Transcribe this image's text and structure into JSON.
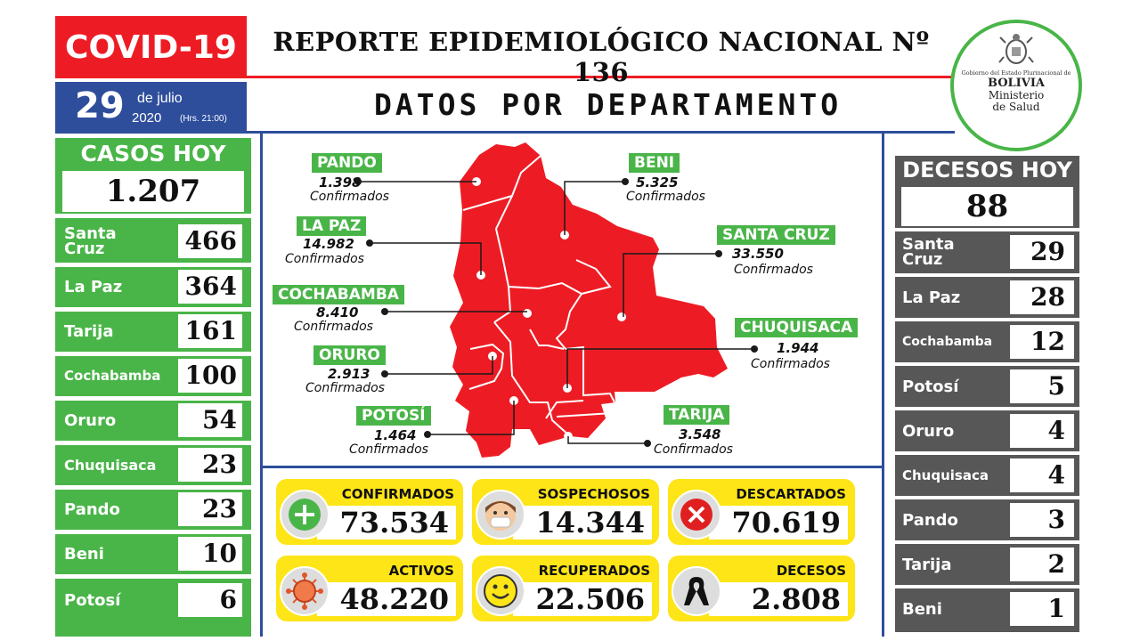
{
  "header": {
    "covid": "COVID-19",
    "report_title": "REPORTE EPIDEMIOLÓGICO NACIONAL Nº 136",
    "day": "29",
    "month": "de julio",
    "year": "2020",
    "hours": "(Hrs. 21:00)",
    "dept_title": "DATOS POR DEPARTAMENTO"
  },
  "logo": {
    "line1": "Gobierno del Estado Plurinacional de",
    "line2": "BOLIVIA",
    "line3": "Ministerio",
    "line4": "de Salud"
  },
  "casos_hoy": {
    "title": "CASOS HOY",
    "total": "1.207",
    "rows": [
      {
        "name": "Santa Cruz",
        "value": "466"
      },
      {
        "name": "La Paz",
        "value": "364"
      },
      {
        "name": "Tarija",
        "value": "161"
      },
      {
        "name": "Cochabamba",
        "value": "100"
      },
      {
        "name": "Oruro",
        "value": "54"
      },
      {
        "name": "Chuquisaca",
        "value": "23"
      },
      {
        "name": "Pando",
        "value": "23"
      },
      {
        "name": "Beni",
        "value": "10"
      },
      {
        "name": "Potosí",
        "value": "6"
      }
    ]
  },
  "decesos_hoy": {
    "title": "DECESOS HOY",
    "total": "88",
    "rows": [
      {
        "name": "Santa Cruz",
        "value": "29"
      },
      {
        "name": "La Paz",
        "value": "28"
      },
      {
        "name": "Cochabamba",
        "value": "12"
      },
      {
        "name": "Potosí",
        "value": "5"
      },
      {
        "name": "Oruro",
        "value": "4"
      },
      {
        "name": "Chuquisaca",
        "value": "4"
      },
      {
        "name": "Pando",
        "value": "3"
      },
      {
        "name": "Tarija",
        "value": "2"
      },
      {
        "name": "Beni",
        "value": "1"
      }
    ]
  },
  "map": {
    "confirm_word": "Confirmados",
    "departments": [
      {
        "name": "PANDO",
        "value": "1.398"
      },
      {
        "name": "BENI",
        "value": "5.325"
      },
      {
        "name": "LA PAZ",
        "value": "14.982"
      },
      {
        "name": "SANTA CRUZ",
        "value": "33.550"
      },
      {
        "name": "COCHABAMBA",
        "value": "8.410"
      },
      {
        "name": "CHUQUISACA",
        "value": "1.944"
      },
      {
        "name": "ORURO",
        "value": "2.913"
      },
      {
        "name": "POTOSÍ",
        "value": "1.464"
      },
      {
        "name": "TARIJA",
        "value": "3.548"
      }
    ]
  },
  "stats": [
    {
      "label": "CONFIRMADOS",
      "value": "73.534",
      "icon": "plus-icon"
    },
    {
      "label": "SOSPECHOSOS",
      "value": "14.344",
      "icon": "masked-face-icon"
    },
    {
      "label": "DESCARTADOS",
      "value": "70.619",
      "icon": "x-circle-icon"
    },
    {
      "label": "ACTIVOS",
      "value": "48.220",
      "icon": "virus-icon"
    },
    {
      "label": "RECUPERADOS",
      "value": "22.506",
      "icon": "smile-icon"
    },
    {
      "label": "DECESOS",
      "value": "2.808",
      "icon": "mourning-ribbon-icon"
    }
  ],
  "colors": {
    "red": "#ed1c24",
    "blue": "#2e4e9c",
    "green": "#49b548",
    "gray": "#575757",
    "yellow": "#fde517"
  }
}
